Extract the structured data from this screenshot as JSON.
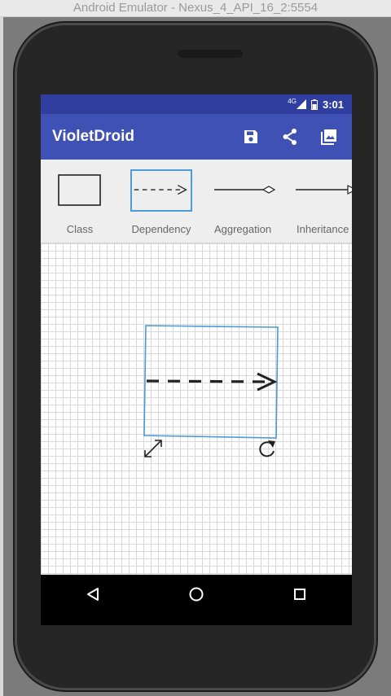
{
  "window": {
    "title": "Android Emulator - Nexus_4_API_16_2:5554"
  },
  "status_bar": {
    "network": "4G",
    "time": "3:01"
  },
  "app_bar": {
    "title": "VioletDroid",
    "actions": [
      {
        "icon": "save-icon"
      },
      {
        "icon": "share-icon"
      },
      {
        "icon": "image-icon"
      }
    ]
  },
  "palette": {
    "tools": [
      {
        "label": "Class",
        "icon": "class-box-icon",
        "selected": false
      },
      {
        "label": "Dependency",
        "icon": "dependency-arrow-icon",
        "selected": true
      },
      {
        "label": "Aggregation",
        "icon": "aggregation-diamond-icon",
        "selected": false
      },
      {
        "label": "Inheritance",
        "icon": "inheritance-arrow-icon",
        "selected": false
      }
    ]
  },
  "canvas": {
    "selected_element": "dependency",
    "handles": [
      "resize-handle-icon",
      "rotate-handle-icon"
    ]
  },
  "nav_bar": {
    "buttons": [
      "back-icon",
      "home-icon",
      "recents-icon"
    ]
  },
  "colors": {
    "status_bar": "#303F9F",
    "app_bar": "#3F51B5",
    "selection": "#4a9bd6",
    "palette_bg": "#eeeeee"
  }
}
